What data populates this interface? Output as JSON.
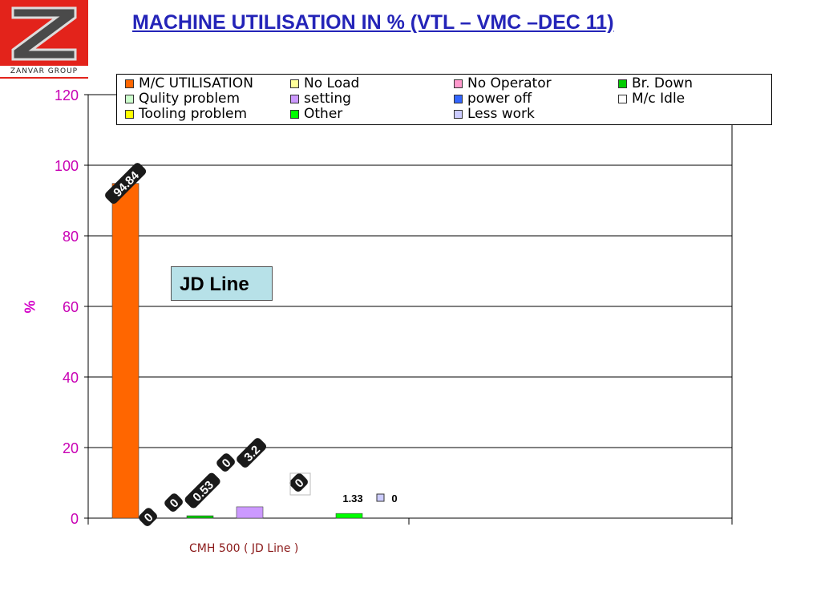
{
  "header": {
    "title": "MACHINE UTILISATION IN % (VTL – VMC –DEC 11)",
    "logo_text": "ZANVAR GROUP"
  },
  "callout": {
    "text": "JD Line"
  },
  "colors": {
    "title": "#2424b8",
    "axis_label": "#d300c8",
    "tick_label": "#c800b4",
    "category_label": "#8b1a1a",
    "logo_red": "#e3231b"
  },
  "chart_data": {
    "type": "bar",
    "title": "",
    "xlabel": "",
    "ylabel": "%",
    "ylim": [
      0,
      120
    ],
    "yticks": [
      0,
      20,
      40,
      60,
      80,
      100,
      120
    ],
    "grid": true,
    "legend_position": "top",
    "categories": [
      "CMH 500 ( JD Line )"
    ],
    "series": [
      {
        "name": "M/C UTILISATION",
        "color": "#ff6600",
        "values": [
          94.84
        ],
        "label": "94.84"
      },
      {
        "name": "No Load",
        "color": "#ffff99",
        "values": [
          0
        ],
        "label": "0"
      },
      {
        "name": "No Operator",
        "color": "#ff99cc",
        "values": [
          0
        ],
        "label": "0"
      },
      {
        "name": "Br. Down",
        "color": "#00cc00",
        "values": [
          0.53
        ],
        "label": "0.53"
      },
      {
        "name": "Qulity problem",
        "color": "#ccffcc",
        "values": [
          0
        ],
        "label": "0"
      },
      {
        "name": "setting",
        "color": "#cc99ff",
        "values": [
          3.2
        ],
        "label": "3.2"
      },
      {
        "name": "power off",
        "color": "#3366ff",
        "values": [
          0
        ],
        "label": "0"
      },
      {
        "name": "M/c Idle",
        "color": "#ffffff",
        "values": [
          0
        ],
        "label": ""
      },
      {
        "name": "Tooling problem",
        "color": "#ffff00",
        "values": [
          0
        ],
        "label": ""
      },
      {
        "name": "Other",
        "color": "#00ff00",
        "values": [
          1.33
        ],
        "label": "1.33"
      },
      {
        "name": "Less work",
        "color": "#ccccff",
        "values": [
          0
        ],
        "label": "0"
      }
    ]
  }
}
